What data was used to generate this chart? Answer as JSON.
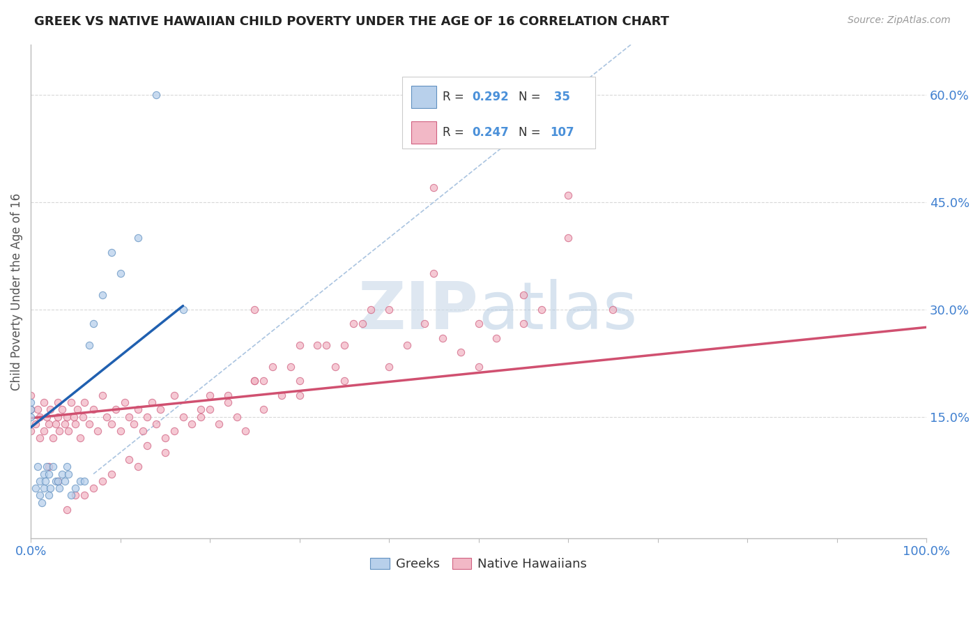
{
  "title": "GREEK VS NATIVE HAWAIIAN CHILD POVERTY UNDER THE AGE OF 16 CORRELATION CHART",
  "source_text": "Source: ZipAtlas.com",
  "ylabel": "Child Poverty Under the Age of 16",
  "watermark_zip": "ZIP",
  "watermark_atlas": "atlas",
  "xlim": [
    0,
    1.0
  ],
  "ylim": [
    -0.02,
    0.67
  ],
  "xticks": [
    0.0,
    0.1,
    0.2,
    0.3,
    0.4,
    0.5,
    0.6,
    0.7,
    0.8,
    0.9,
    1.0
  ],
  "ytick_right_vals": [
    0.15,
    0.3,
    0.45,
    0.6
  ],
  "ytick_right_labels": [
    "15.0%",
    "30.0%",
    "45.0%",
    "60.0%"
  ],
  "greeks": {
    "x": [
      0.0,
      0.0,
      0.0,
      0.005,
      0.008,
      0.01,
      0.01,
      0.012,
      0.015,
      0.015,
      0.016,
      0.018,
      0.02,
      0.02,
      0.022,
      0.025,
      0.028,
      0.03,
      0.032,
      0.035,
      0.038,
      0.04,
      0.042,
      0.045,
      0.05,
      0.055,
      0.06,
      0.065,
      0.07,
      0.08,
      0.09,
      0.1,
      0.12,
      0.14,
      0.17
    ],
    "y": [
      0.17,
      0.15,
      0.16,
      0.05,
      0.08,
      0.04,
      0.06,
      0.03,
      0.05,
      0.07,
      0.06,
      0.08,
      0.04,
      0.07,
      0.05,
      0.08,
      0.06,
      0.06,
      0.05,
      0.07,
      0.06,
      0.08,
      0.07,
      0.04,
      0.05,
      0.06,
      0.06,
      0.25,
      0.28,
      0.32,
      0.38,
      0.35,
      0.4,
      0.6,
      0.3
    ],
    "size": 55,
    "color": "#b8d0eb",
    "edgecolor": "#6090c0",
    "alpha": 0.75,
    "R": 0.292,
    "N": 35
  },
  "native_hawaiians": {
    "x": [
      0.0,
      0.0,
      0.0,
      0.005,
      0.008,
      0.01,
      0.01,
      0.015,
      0.015,
      0.018,
      0.02,
      0.022,
      0.025,
      0.028,
      0.03,
      0.03,
      0.032,
      0.035,
      0.038,
      0.04,
      0.042,
      0.045,
      0.048,
      0.05,
      0.052,
      0.055,
      0.058,
      0.06,
      0.065,
      0.07,
      0.075,
      0.08,
      0.085,
      0.09,
      0.095,
      0.1,
      0.105,
      0.11,
      0.115,
      0.12,
      0.125,
      0.13,
      0.135,
      0.14,
      0.145,
      0.15,
      0.16,
      0.17,
      0.18,
      0.19,
      0.2,
      0.21,
      0.22,
      0.23,
      0.24,
      0.25,
      0.26,
      0.27,
      0.28,
      0.3,
      0.32,
      0.34,
      0.36,
      0.38,
      0.4,
      0.42,
      0.44,
      0.46,
      0.48,
      0.5,
      0.52,
      0.55,
      0.57,
      0.6,
      0.25,
      0.3,
      0.35,
      0.4,
      0.45,
      0.5,
      0.55,
      0.6,
      0.65,
      0.35,
      0.45,
      0.25,
      0.3,
      0.2,
      0.15,
      0.12,
      0.08,
      0.06,
      0.04,
      0.02,
      0.03,
      0.05,
      0.07,
      0.09,
      0.11,
      0.13,
      0.16,
      0.19,
      0.22,
      0.26,
      0.29,
      0.33,
      0.37
    ],
    "y": [
      0.16,
      0.13,
      0.18,
      0.14,
      0.16,
      0.12,
      0.15,
      0.17,
      0.13,
      0.15,
      0.14,
      0.16,
      0.12,
      0.14,
      0.15,
      0.17,
      0.13,
      0.16,
      0.14,
      0.15,
      0.13,
      0.17,
      0.15,
      0.14,
      0.16,
      0.12,
      0.15,
      0.17,
      0.14,
      0.16,
      0.13,
      0.18,
      0.15,
      0.14,
      0.16,
      0.13,
      0.17,
      0.15,
      0.14,
      0.16,
      0.13,
      0.15,
      0.17,
      0.14,
      0.16,
      0.12,
      0.18,
      0.15,
      0.14,
      0.16,
      0.18,
      0.14,
      0.17,
      0.15,
      0.13,
      0.2,
      0.16,
      0.22,
      0.18,
      0.2,
      0.25,
      0.22,
      0.28,
      0.3,
      0.22,
      0.25,
      0.28,
      0.26,
      0.24,
      0.22,
      0.26,
      0.28,
      0.3,
      0.46,
      0.3,
      0.25,
      0.2,
      0.3,
      0.35,
      0.28,
      0.32,
      0.4,
      0.3,
      0.25,
      0.47,
      0.2,
      0.18,
      0.16,
      0.1,
      0.08,
      0.06,
      0.04,
      0.02,
      0.08,
      0.06,
      0.04,
      0.05,
      0.07,
      0.09,
      0.11,
      0.13,
      0.15,
      0.18,
      0.2,
      0.22,
      0.25,
      0.28
    ],
    "size": 55,
    "color": "#f2b8c6",
    "edgecolor": "#d06080",
    "alpha": 0.75,
    "R": 0.247,
    "N": 107
  },
  "blue_line": {
    "x": [
      0.0,
      0.17
    ],
    "y": [
      0.135,
      0.305
    ],
    "color": "#2060b0",
    "linewidth": 2.5
  },
  "pink_line": {
    "x": [
      0.0,
      1.0
    ],
    "y": [
      0.148,
      0.275
    ],
    "color": "#d05070",
    "linewidth": 2.5
  },
  "diag_line": {
    "x": [
      0.07,
      0.67
    ],
    "y": [
      0.07,
      0.67
    ],
    "color": "#aac4e0",
    "linewidth": 1.2,
    "linestyle": "--"
  },
  "background_color": "#ffffff",
  "grid_color": "#d8d8d8",
  "grid_style": "--",
  "title_color": "#222222",
  "source_color": "#999999",
  "watermark_color_zip": "#c8d8e8",
  "watermark_color_atlas": "#b0c8e0",
  "axis_label_color": "#555555",
  "tick_color": "#4080d0"
}
